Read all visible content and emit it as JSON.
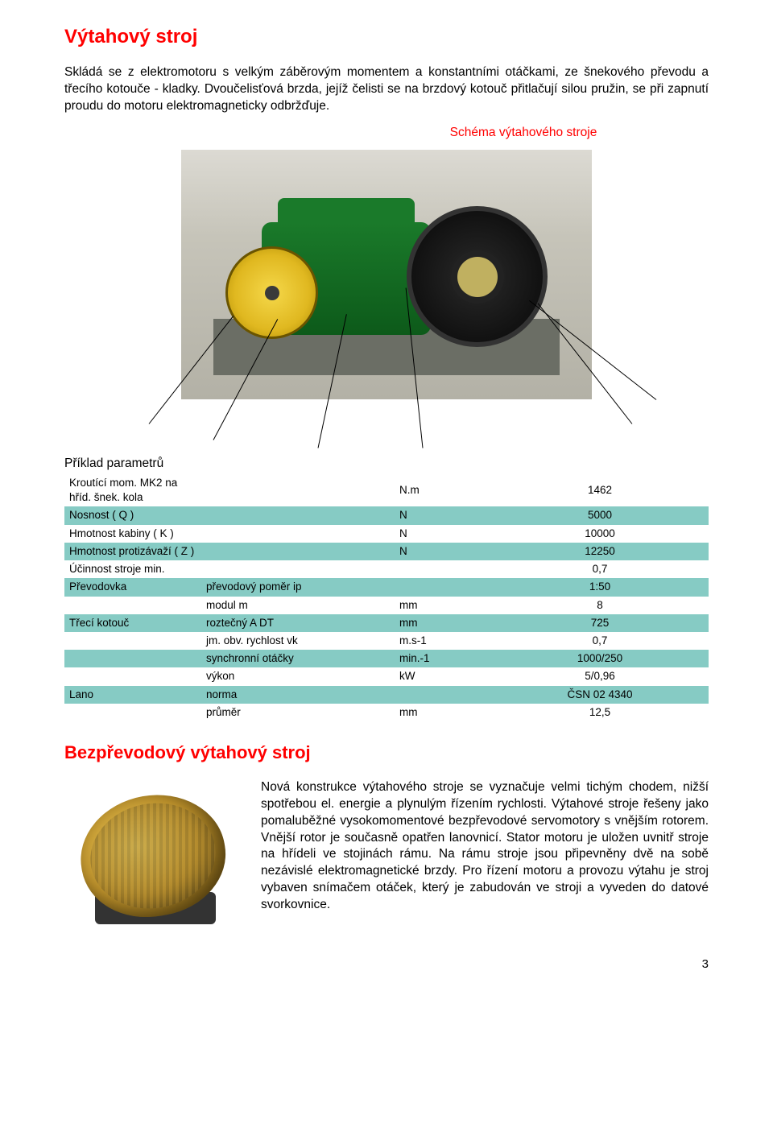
{
  "page": {
    "title1": "Výtahový stroj",
    "intro": "Skládá se z elektromotoru s velkým záběrovým momentem a konstantními otáčkami, ze šnekového převodu a třecího kotouče - kladky. Dvoučelisťová brzda, jejíž čelisti se na brzdový kotouč přitlačují silou pružin, se při zapnutí proudu do motoru elektromagneticky odbržďuje.",
    "schema_label": "Schéma výtahového stroje",
    "params_title": "Příklad parametrů",
    "title2": "Bezpřevodový výtahový stroj",
    "gearless_text": "Nová konstrukce výtahového stroje se vyznačuje velmi tichým chodem, nižší spotřebou el. energie a plynulým řízením rychlosti. Výtahové stroje řešeny jako pomaluběžné vysokomomentové bezpřevodové servomotory s vnějším rotorem. Vnější rotor je současně opatřen lanovnicí. Stator motoru je uložen uvnitř stroje na hřídeli ve stojinách rámu. Na rámu stroje jsou připevněny dvě na sobě nezávislé elektromagnetické brzdy. Pro řízení motoru a provozu výtahu je stroj vybaven snímačem otáček, který je zabudován ve stroji a vyveden do datové svorkovnice.",
    "page_number": "3"
  },
  "table": {
    "highlight_bg": "#86cbc4",
    "rows": [
      {
        "c1": "Kroutící mom. MK2 na hříd. šnek. kola",
        "c2": "",
        "c3": "N.m",
        "c4": "1462",
        "hl": false
      },
      {
        "c1": "Nosnost ( Q )",
        "c2": "",
        "c3": "N",
        "c4": "5000",
        "hl": true
      },
      {
        "c1": "Hmotnost kabiny ( K )",
        "c2": "",
        "c3": "N",
        "c4": "10000",
        "hl": false
      },
      {
        "c1": "Hmotnost protizávaží ( Z )",
        "c2": "",
        "c3": "N",
        "c4": "12250",
        "hl": true
      },
      {
        "c1": "Účinnost stroje min.",
        "c2": "",
        "c3": "",
        "c4": "0,7",
        "hl": false
      },
      {
        "c1": "Převodovka",
        "c2": "převodový poměr ip",
        "c3": "",
        "c4": "1:50",
        "hl": true
      },
      {
        "c1": "",
        "c2": "modul m",
        "c3": "mm",
        "c4": "8",
        "hl": false
      },
      {
        "c1": "Třecí kotouč",
        "c2": "roztečný A DT",
        "c3": "mm",
        "c4": "725",
        "hl": true
      },
      {
        "c1": "",
        "c2": "jm. obv. rychlost vk",
        "c3": "m.s-1",
        "c4": "0,7",
        "hl": false
      },
      {
        "c1": "",
        "c2": "synchronní otáčky",
        "c3": "min.-1",
        "c4": "1000/250",
        "hl": true
      },
      {
        "c1": "",
        "c2": "výkon",
        "c3": "kW",
        "c4": "5/0,96",
        "hl": false
      },
      {
        "c1": "Lano",
        "c2": "norma",
        "c3": "",
        "c4": "ČSN 02 4340",
        "hl": true
      },
      {
        "c1": "",
        "c2": "průměr",
        "c3": "mm",
        "c4": "12,5",
        "hl": false
      }
    ]
  },
  "colors": {
    "heading": "#ff0000",
    "text": "#000000",
    "background": "#ffffff"
  }
}
